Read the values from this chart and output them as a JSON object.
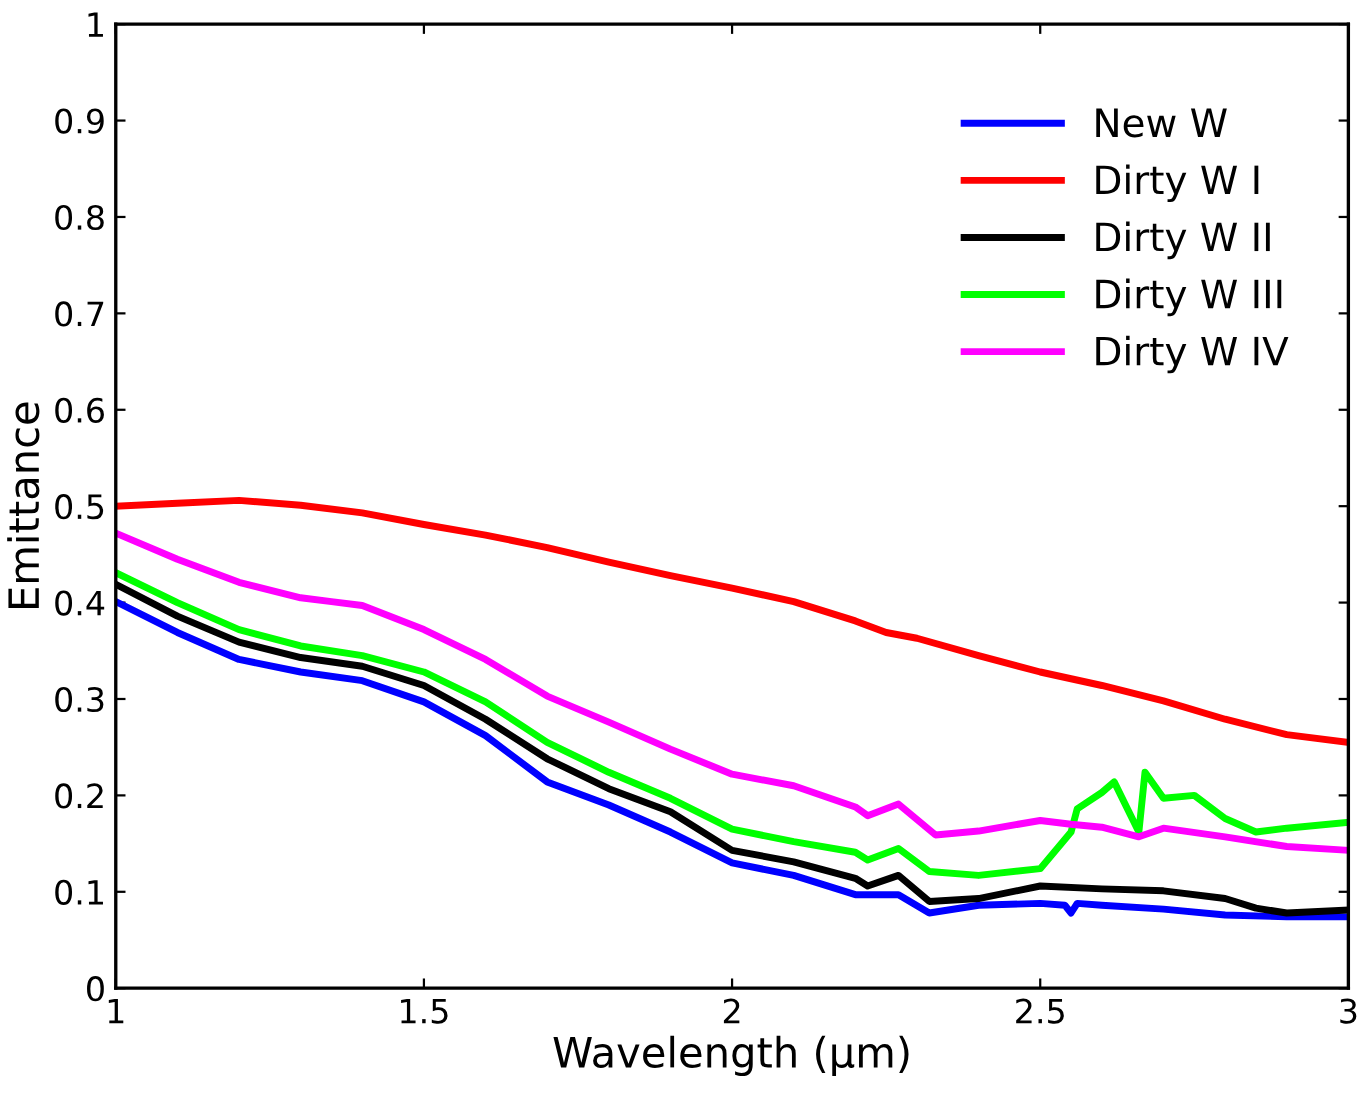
{
  "chart_data": {
    "type": "line",
    "xlabel": "Wavelength (µm)",
    "ylabel": "Emittance",
    "xlim": [
      1,
      3
    ],
    "ylim": [
      0,
      1
    ],
    "xticks": [
      1,
      1.5,
      2,
      2.5,
      3
    ],
    "yticks": [
      0,
      0.1,
      0.2,
      0.3,
      0.4,
      0.5,
      0.6,
      0.7,
      0.8,
      0.9,
      1
    ],
    "grid": false,
    "legend": "top right",
    "marker": "none",
    "line_style": "solid",
    "series": [
      {
        "name": "New W",
        "color": "#0000ff",
        "x": [
          1.0,
          1.1,
          1.2,
          1.3,
          1.4,
          1.5,
          1.6,
          1.7,
          1.8,
          1.9,
          2.0,
          2.1,
          2.2,
          2.27,
          2.32,
          2.4,
          2.5,
          2.54,
          2.55,
          2.56,
          2.6,
          2.7,
          2.8,
          2.9,
          3.0
        ],
        "values": [
          0.401,
          0.369,
          0.341,
          0.328,
          0.319,
          0.297,
          0.262,
          0.214,
          0.19,
          0.162,
          0.13,
          0.117,
          0.097,
          0.097,
          0.078,
          0.086,
          0.088,
          0.086,
          0.078,
          0.088,
          0.086,
          0.082,
          0.076,
          0.074,
          0.074
        ]
      },
      {
        "name": "Dirty W I",
        "color": "#ff0000",
        "x": [
          1.0,
          1.1,
          1.2,
          1.3,
          1.4,
          1.5,
          1.6,
          1.7,
          1.8,
          1.9,
          2.0,
          2.1,
          2.2,
          2.25,
          2.3,
          2.4,
          2.5,
          2.6,
          2.7,
          2.8,
          2.9,
          3.0
        ],
        "values": [
          0.5,
          0.503,
          0.506,
          0.501,
          0.493,
          0.481,
          0.47,
          0.457,
          0.442,
          0.428,
          0.415,
          0.401,
          0.381,
          0.369,
          0.363,
          0.345,
          0.328,
          0.314,
          0.298,
          0.279,
          0.263,
          0.255
        ]
      },
      {
        "name": "Dirty W II",
        "color": "#000000",
        "x": [
          1.0,
          1.1,
          1.2,
          1.3,
          1.4,
          1.5,
          1.6,
          1.7,
          1.8,
          1.9,
          2.0,
          2.1,
          2.2,
          2.22,
          2.27,
          2.32,
          2.4,
          2.5,
          2.6,
          2.7,
          2.8,
          2.85,
          2.9,
          3.0
        ],
        "values": [
          0.419,
          0.386,
          0.359,
          0.343,
          0.334,
          0.314,
          0.279,
          0.238,
          0.207,
          0.183,
          0.143,
          0.131,
          0.114,
          0.106,
          0.117,
          0.09,
          0.093,
          0.106,
          0.103,
          0.101,
          0.093,
          0.083,
          0.078,
          0.081
        ]
      },
      {
        "name": "Dirty W III",
        "color": "#00ff00",
        "x": [
          1.0,
          1.1,
          1.2,
          1.3,
          1.4,
          1.5,
          1.6,
          1.7,
          1.8,
          1.9,
          2.0,
          2.1,
          2.2,
          2.22,
          2.27,
          2.32,
          2.4,
          2.5,
          2.55,
          2.56,
          2.6,
          2.62,
          2.66,
          2.67,
          2.7,
          2.75,
          2.8,
          2.85,
          2.9,
          3.0
        ],
        "values": [
          0.431,
          0.4,
          0.372,
          0.355,
          0.345,
          0.328,
          0.297,
          0.255,
          0.224,
          0.197,
          0.165,
          0.152,
          0.141,
          0.133,
          0.145,
          0.121,
          0.117,
          0.124,
          0.162,
          0.186,
          0.203,
          0.214,
          0.162,
          0.224,
          0.197,
          0.2,
          0.176,
          0.162,
          0.166,
          0.172
        ]
      },
      {
        "name": "Dirty W IV",
        "color": "#ff00ff",
        "x": [
          1.0,
          1.1,
          1.2,
          1.3,
          1.35,
          1.4,
          1.5,
          1.6,
          1.7,
          1.8,
          1.9,
          2.0,
          2.1,
          2.2,
          2.22,
          2.27,
          2.33,
          2.4,
          2.5,
          2.55,
          2.6,
          2.66,
          2.7,
          2.8,
          2.9,
          3.0
        ],
        "values": [
          0.472,
          0.445,
          0.421,
          0.405,
          0.401,
          0.397,
          0.372,
          0.341,
          0.303,
          0.276,
          0.248,
          0.222,
          0.21,
          0.188,
          0.179,
          0.191,
          0.159,
          0.163,
          0.174,
          0.17,
          0.167,
          0.157,
          0.166,
          0.157,
          0.147,
          0.143
        ]
      }
    ]
  }
}
